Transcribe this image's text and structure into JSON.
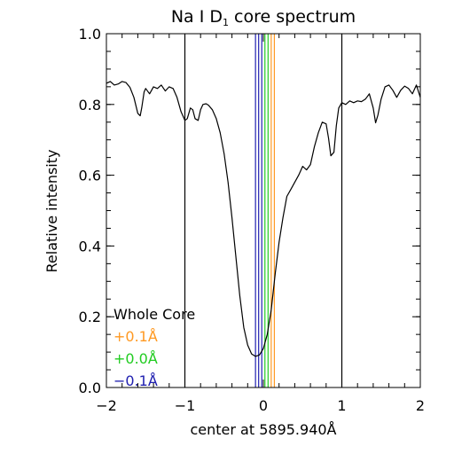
{
  "chart_data": {
    "type": "line",
    "title_main": "Na I D",
    "title_sub": "1",
    "title_rest": " core spectrum",
    "xlabel": "center at 5895.940Å",
    "ylabel": "Relative intensity",
    "xlim": [
      -2,
      2
    ],
    "ylim": [
      0.0,
      1.0
    ],
    "x_ticks": [
      {
        "value": -2,
        "label": "−2"
      },
      {
        "value": -1,
        "label": "−1"
      },
      {
        "value": 0,
        "label": "0"
      },
      {
        "value": 1,
        "label": "1"
      },
      {
        "value": 2,
        "label": "2"
      }
    ],
    "y_ticks": [
      {
        "value": 0.0,
        "label": "0.0"
      },
      {
        "value": 0.2,
        "label": "0.2"
      },
      {
        "value": 0.4,
        "label": "0.4"
      },
      {
        "value": 0.6,
        "label": "0.6"
      },
      {
        "value": 0.8,
        "label": "0.8"
      },
      {
        "value": 1.0,
        "label": "1.0"
      }
    ],
    "x_minor_step": 0.2,
    "y_minor_step": 0.05,
    "series": [
      {
        "color": "#000000",
        "x": [
          -2.0,
          -1.95,
          -1.9,
          -1.85,
          -1.8,
          -1.75,
          -1.7,
          -1.65,
          -1.6,
          -1.57,
          -1.55,
          -1.52,
          -1.5,
          -1.45,
          -1.4,
          -1.35,
          -1.3,
          -1.25,
          -1.2,
          -1.15,
          -1.1,
          -1.05,
          -1.0,
          -0.97,
          -0.93,
          -0.9,
          -0.87,
          -0.83,
          -0.8,
          -0.77,
          -0.73,
          -0.7,
          -0.65,
          -0.6,
          -0.55,
          -0.5,
          -0.45,
          -0.4,
          -0.35,
          -0.3,
          -0.25,
          -0.2,
          -0.15,
          -0.1,
          -0.05,
          0.0,
          0.05,
          0.1,
          0.15,
          0.2,
          0.25,
          0.3,
          0.35,
          0.4,
          0.45,
          0.5,
          0.55,
          0.6,
          0.65,
          0.7,
          0.75,
          0.8,
          0.83,
          0.86,
          0.9,
          0.93,
          0.96,
          1.0,
          1.05,
          1.1,
          1.15,
          1.2,
          1.25,
          1.3,
          1.35,
          1.4,
          1.43,
          1.46,
          1.5,
          1.55,
          1.6,
          1.65,
          1.7,
          1.75,
          1.8,
          1.85,
          1.9,
          1.95,
          2.0
        ],
        "y": [
          0.86,
          0.865,
          0.855,
          0.858,
          0.865,
          0.862,
          0.848,
          0.82,
          0.775,
          0.768,
          0.79,
          0.835,
          0.845,
          0.83,
          0.85,
          0.845,
          0.855,
          0.838,
          0.85,
          0.845,
          0.82,
          0.78,
          0.755,
          0.76,
          0.79,
          0.785,
          0.76,
          0.755,
          0.785,
          0.8,
          0.802,
          0.798,
          0.785,
          0.76,
          0.72,
          0.66,
          0.58,
          0.48,
          0.37,
          0.26,
          0.17,
          0.12,
          0.095,
          0.088,
          0.092,
          0.11,
          0.15,
          0.22,
          0.32,
          0.41,
          0.48,
          0.54,
          0.56,
          0.58,
          0.6,
          0.625,
          0.615,
          0.63,
          0.68,
          0.72,
          0.75,
          0.745,
          0.705,
          0.655,
          0.665,
          0.74,
          0.79,
          0.805,
          0.8,
          0.81,
          0.805,
          0.81,
          0.808,
          0.815,
          0.83,
          0.79,
          0.748,
          0.77,
          0.815,
          0.85,
          0.855,
          0.84,
          0.82,
          0.84,
          0.852,
          0.845,
          0.83,
          0.855,
          0.82
        ]
      }
    ],
    "vlines": [
      {
        "x": -1.0,
        "color": "#000000"
      },
      {
        "x": 1.0,
        "color": "#000000"
      },
      {
        "x": -0.1,
        "color": "#2020b0"
      },
      {
        "x": -0.06,
        "color": "#2020b0"
      },
      {
        "x": -0.02,
        "color": "#2020b0"
      },
      {
        "x": 0.02,
        "color": "#22cc22"
      },
      {
        "x": 0.06,
        "color": "#22cc22"
      },
      {
        "x": 0.1,
        "color": "#ff9922"
      },
      {
        "x": 0.14,
        "color": "#ff9922"
      }
    ],
    "legend": [
      {
        "label": "Whole Core",
        "color": "#000000"
      },
      {
        "label": "+0.1Å",
        "color": "#ff9922"
      },
      {
        "label": "+0.0Å",
        "color": "#22cc22"
      },
      {
        "label": "−0.1Å",
        "color": "#2020b0"
      }
    ],
    "legend_placement": "bottom-left"
  }
}
